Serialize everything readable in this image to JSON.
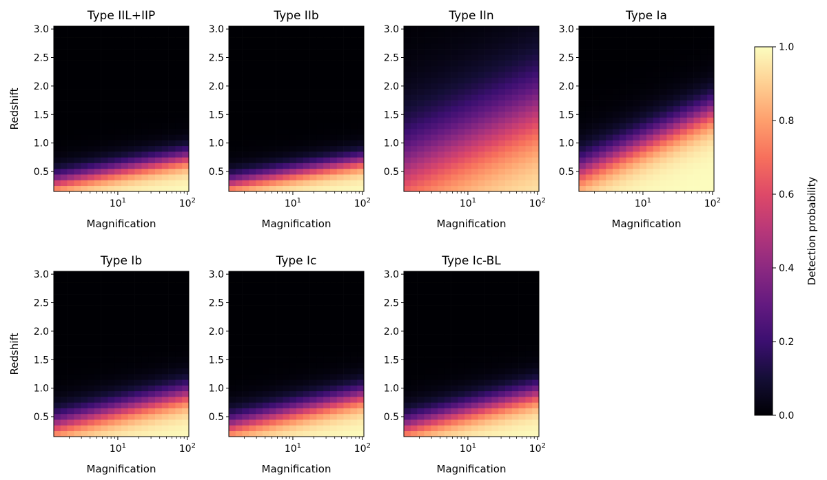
{
  "chart_data": {
    "type": "heatmap",
    "xlabel": "Magnification",
    "ylabel": "Redshift",
    "x_scale": "log",
    "xlim": [
      1.2,
      105
    ],
    "ylim": [
      0.15,
      3.05
    ],
    "xticks": [
      {
        "value": 10,
        "base": "10",
        "exp": "1"
      },
      {
        "value": 100,
        "base": "10",
        "exp": "2"
      }
    ],
    "yticks": [
      "0.5",
      "1.0",
      "1.5",
      "2.0",
      "2.5",
      "3.0"
    ],
    "ytick_values": [
      0.5,
      1.0,
      1.5,
      2.0,
      2.5,
      3.0
    ],
    "grid_cols": 20,
    "grid_rows": 29,
    "colormap": "magma",
    "colorbar": {
      "label": "Detection probability",
      "range": [
        0.0,
        1.0
      ],
      "ticks": [
        "0.0",
        "0.2",
        "0.4",
        "0.6",
        "0.8",
        "1.0"
      ],
      "tick_values": [
        0.0,
        0.2,
        0.4,
        0.6,
        0.8,
        1.0
      ]
    },
    "panels": [
      {
        "title": "Type IIL+IIP",
        "z50_at_mu1": 0.3,
        "z50_slope_per_decade": 0.22,
        "width": 0.12,
        "show_ylabel": true
      },
      {
        "title": "Type IIb",
        "z50_at_mu1": 0.28,
        "z50_slope_per_decade": 0.2,
        "width": 0.11,
        "show_ylabel": false
      },
      {
        "title": "Type IIn",
        "z50_at_mu1": 0.45,
        "z50_slope_per_decade": 0.55,
        "width": 0.5,
        "show_ylabel": false
      },
      {
        "title": "Type Ia",
        "z50_at_mu1": 0.45,
        "z50_slope_per_decade": 0.55,
        "width": 0.2,
        "show_ylabel": false
      },
      {
        "title": "Type Ib",
        "z50_at_mu1": 0.33,
        "z50_slope_per_decade": 0.28,
        "width": 0.15,
        "show_ylabel": true
      },
      {
        "title": "Type Ic",
        "z50_at_mu1": 0.32,
        "z50_slope_per_decade": 0.27,
        "width": 0.14,
        "show_ylabel": false
      },
      {
        "title": "Type Ic-BL",
        "z50_at_mu1": 0.3,
        "z50_slope_per_decade": 0.3,
        "width": 0.15,
        "show_ylabel": false
      }
    ]
  }
}
